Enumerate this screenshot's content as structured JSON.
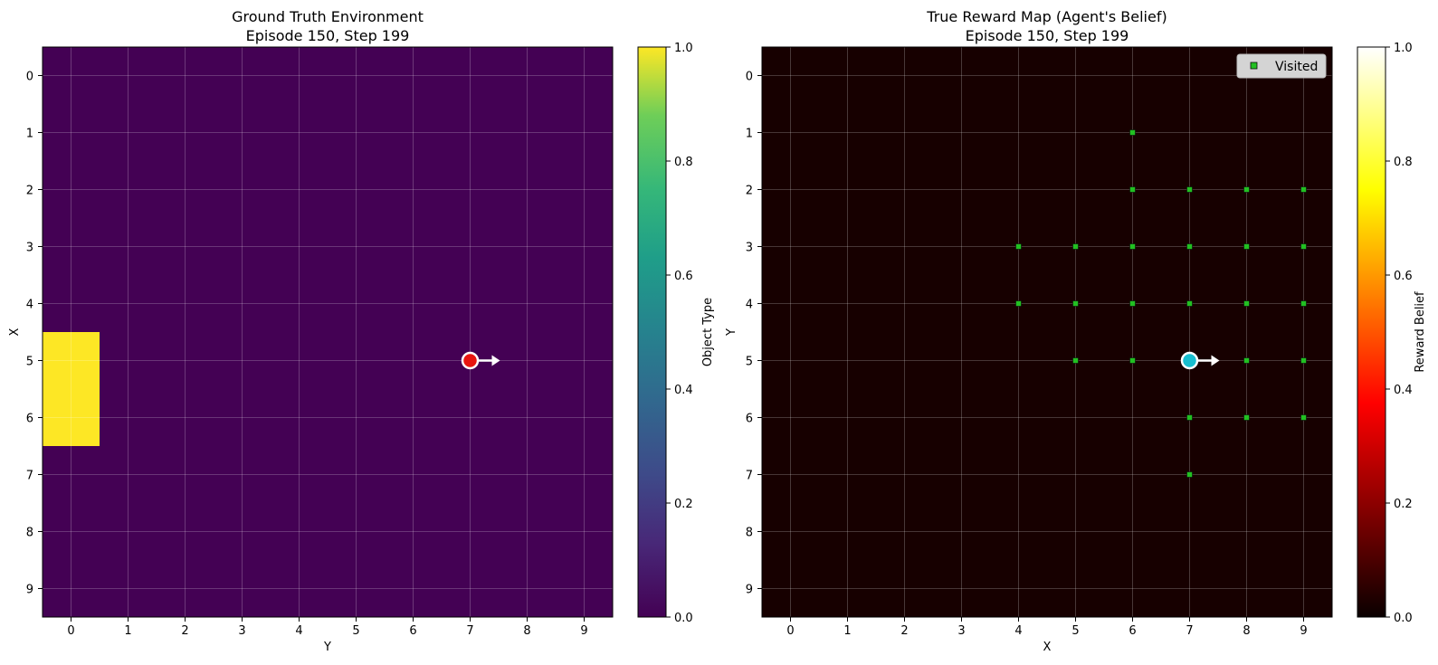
{
  "chart_data": [
    {
      "type": "heatmap",
      "title_lines": [
        "Ground Truth Environment",
        "Episode 150, Step 199"
      ],
      "xlabel": "Y",
      "ylabel": "X",
      "x_ticks": [
        "0",
        "1",
        "2",
        "3",
        "4",
        "5",
        "6",
        "7",
        "8",
        "9"
      ],
      "y_ticks": [
        "0",
        "1",
        "2",
        "3",
        "4",
        "5",
        "6",
        "7",
        "8",
        "9"
      ],
      "colormap": "viridis",
      "colorbar_label": "Object Type",
      "colorbar_range": [
        0.0,
        1.0
      ],
      "colorbar_ticks": [
        "0.0",
        "0.2",
        "0.4",
        "0.6",
        "0.8",
        "1.0"
      ],
      "background_value": 0.0,
      "objects": [
        {
          "x": 0,
          "y": 5,
          "value": 1.0
        },
        {
          "x": 0,
          "y": 6,
          "value": 1.0
        }
      ],
      "agent": {
        "x": 7,
        "y": 5,
        "facing": "right",
        "color": "#e8150f"
      },
      "grid": true
    },
    {
      "type": "heatmap",
      "title_lines": [
        "True Reward Map (Agent's Belief)",
        "Episode 150, Step 199"
      ],
      "xlabel": "X",
      "ylabel": "Y",
      "x_ticks": [
        "0",
        "1",
        "2",
        "3",
        "4",
        "5",
        "6",
        "7",
        "8",
        "9"
      ],
      "y_ticks": [
        "0",
        "1",
        "2",
        "3",
        "4",
        "5",
        "6",
        "7",
        "8",
        "9"
      ],
      "colormap": "hot",
      "colorbar_label": "Reward Belief",
      "colorbar_range": [
        0.0,
        1.0
      ],
      "colorbar_ticks": [
        "0.0",
        "0.2",
        "0.4",
        "0.6",
        "0.8",
        "1.0"
      ],
      "background_value": 0.02,
      "legend": {
        "label": "Visited",
        "position": "top-right",
        "marker_color": "#22c022"
      },
      "visited": [
        [
          6,
          1
        ],
        [
          6,
          2
        ],
        [
          7,
          2
        ],
        [
          8,
          2
        ],
        [
          9,
          2
        ],
        [
          4,
          3
        ],
        [
          5,
          3
        ],
        [
          6,
          3
        ],
        [
          7,
          3
        ],
        [
          8,
          3
        ],
        [
          9,
          3
        ],
        [
          4,
          4
        ],
        [
          5,
          4
        ],
        [
          6,
          4
        ],
        [
          7,
          4
        ],
        [
          8,
          4
        ],
        [
          9,
          4
        ],
        [
          5,
          5
        ],
        [
          6,
          5
        ],
        [
          8,
          5
        ],
        [
          9,
          5
        ],
        [
          7,
          6
        ],
        [
          8,
          6
        ],
        [
          9,
          6
        ],
        [
          7,
          7
        ]
      ],
      "agent": {
        "x": 7,
        "y": 5,
        "facing": "right",
        "color": "#17becf"
      },
      "grid": true
    }
  ]
}
